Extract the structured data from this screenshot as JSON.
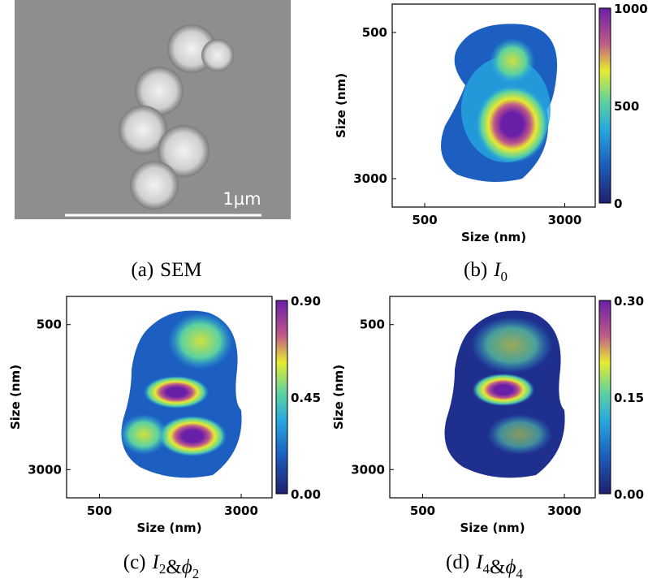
{
  "panels": [
    {
      "scale_bar": "1µm",
      "caption": {
        "label": "(a)",
        "terms": [
          {
            "base": "SEM"
          }
        ]
      }
    },
    {
      "x_label": "Size (nm)",
      "y_label": "Size (nm)",
      "x_ticks": [
        "500",
        "3000"
      ],
      "y_ticks": [
        "500",
        "3000"
      ],
      "colorbar_ticks": [
        "1000",
        "500",
        "0"
      ],
      "caption": {
        "label": "(b)",
        "terms": [
          {
            "base": "I",
            "sub": "0"
          }
        ]
      }
    },
    {
      "x_label": "Size (nm)",
      "y_label": "Size (nm)",
      "x_ticks": [
        "500",
        "3000"
      ],
      "y_ticks": [
        "500",
        "3000"
      ],
      "colorbar_ticks": [
        "0.90",
        "0.45",
        "0.00"
      ],
      "caption": {
        "label": "(c)",
        "terms": [
          {
            "base": "I",
            "sub": "2"
          },
          {
            "base": "&"
          },
          {
            "base": "ϕ",
            "sub": "2"
          }
        ]
      }
    },
    {
      "x_label": "Size (nm)",
      "y_label": "Size (nm)",
      "x_ticks": [
        "500",
        "3000"
      ],
      "y_ticks": [
        "500",
        "3000"
      ],
      "colorbar_ticks": [
        "0.30",
        "0.15",
        "0.00"
      ],
      "caption": {
        "label": "(d)",
        "terms": [
          {
            "base": "I",
            "sub": "4"
          },
          {
            "base": "&"
          },
          {
            "base": "ϕ",
            "sub": "4"
          }
        ]
      }
    }
  ]
}
